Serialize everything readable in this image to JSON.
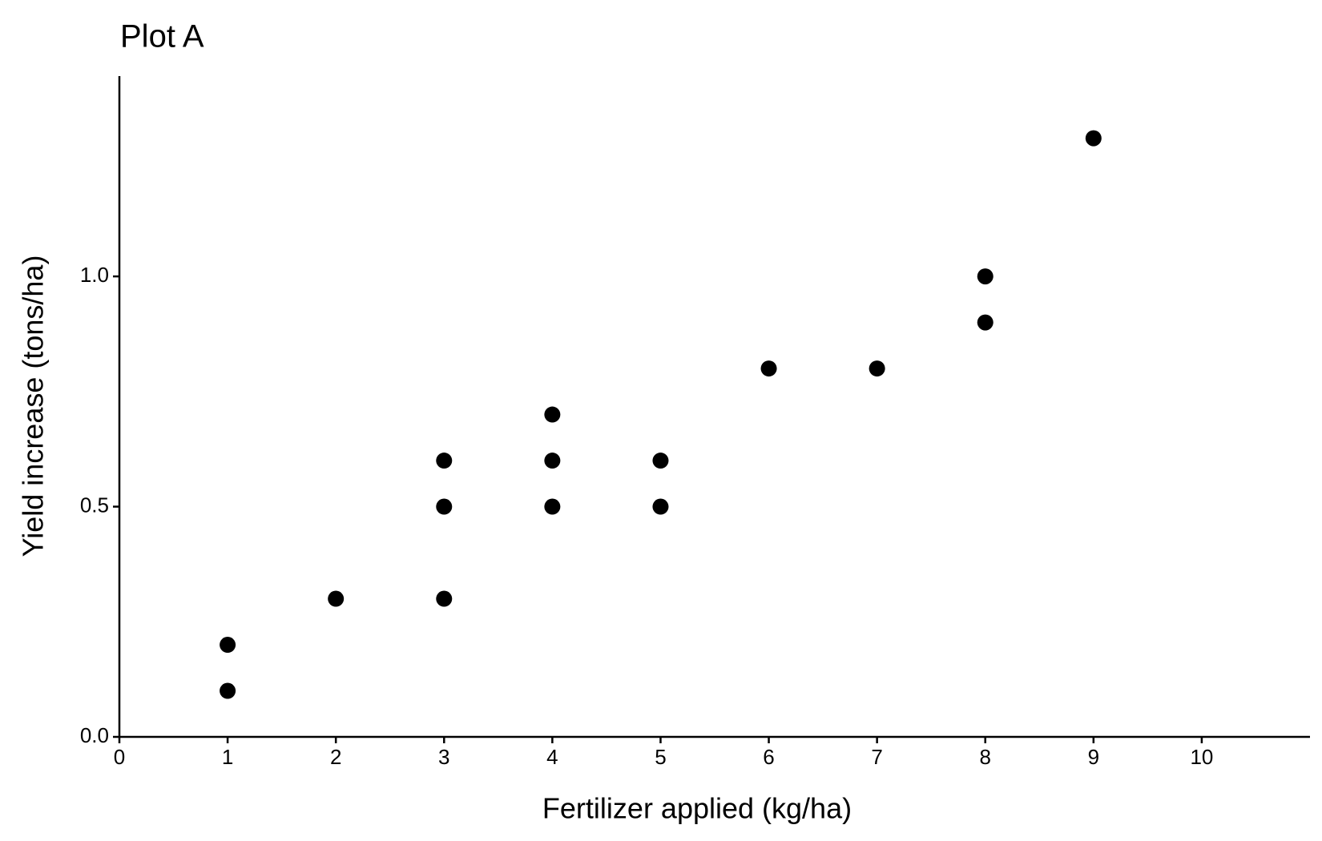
{
  "chart_data": {
    "type": "scatter",
    "title": "Plot A",
    "x_label": "Fertilizer applied (kg/ha)",
    "y_label": "Yield increase (tons/ha)",
    "x": [
      1,
      1,
      2,
      3,
      3,
      3,
      4,
      4,
      4,
      5,
      5,
      6,
      7,
      8,
      8,
      9
    ],
    "values": [
      0.1,
      0.2,
      0.3,
      0.3,
      0.5,
      0.6,
      0.5,
      0.6,
      0.7,
      0.5,
      0.6,
      0.8,
      0.8,
      0.9,
      1.0,
      1.3
    ],
    "color": "#000000",
    "xlim": [
      0,
      11
    ],
    "xticks": [
      0,
      1,
      2,
      3,
      4,
      5,
      6,
      7,
      8,
      9,
      10
    ],
    "ylim": [
      0,
      1.435
    ],
    "yticks": [
      {
        "value": 0,
        "label": "0.0"
      },
      0.5,
      {
        "value": 1,
        "label": "1.0"
      }
    ],
    "grid": false
  }
}
